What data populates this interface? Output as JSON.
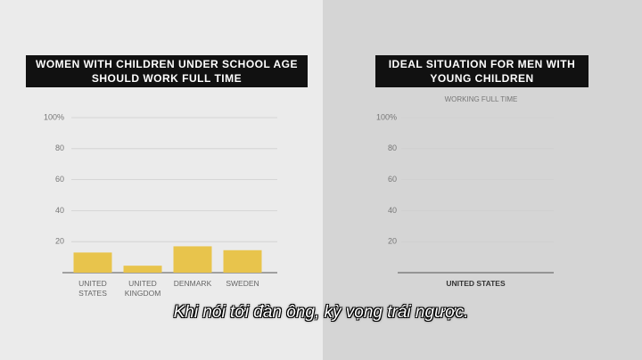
{
  "chart_data": [
    {
      "type": "bar",
      "title": [
        "WOMEN WITH CHILDREN UNDER SCHOOL AGE",
        "SHOULD WORK FULL TIME"
      ],
      "categories": [
        "UNITED\nSTATES",
        "UNITED\nKINGDOM",
        "DENMARK",
        "SWEDEN"
      ],
      "values": [
        13,
        4.5,
        17,
        14.5
      ],
      "color": "#e8c44c",
      "ylim": [
        0,
        100
      ],
      "yticks": [
        20,
        40,
        60,
        80,
        {
          "value": 100,
          "label": "100%"
        }
      ],
      "grid": true
    },
    {
      "type": "bar",
      "title": [
        "IDEAL SITUATION FOR MEN WITH",
        "YOUNG CHILDREN"
      ],
      "subtitle": "WORKING FULL TIME",
      "categories": [
        "UNITED STATES"
      ],
      "values": [
        null
      ],
      "color": "#e8c44c",
      "ylim": [
        0,
        100
      ],
      "yticks": [
        20,
        40,
        60,
        80,
        {
          "value": 100,
          "label": "100%"
        }
      ],
      "grid": true
    }
  ],
  "caption": "Khi nói tới đàn ông, kỳ vọng trái ngược."
}
